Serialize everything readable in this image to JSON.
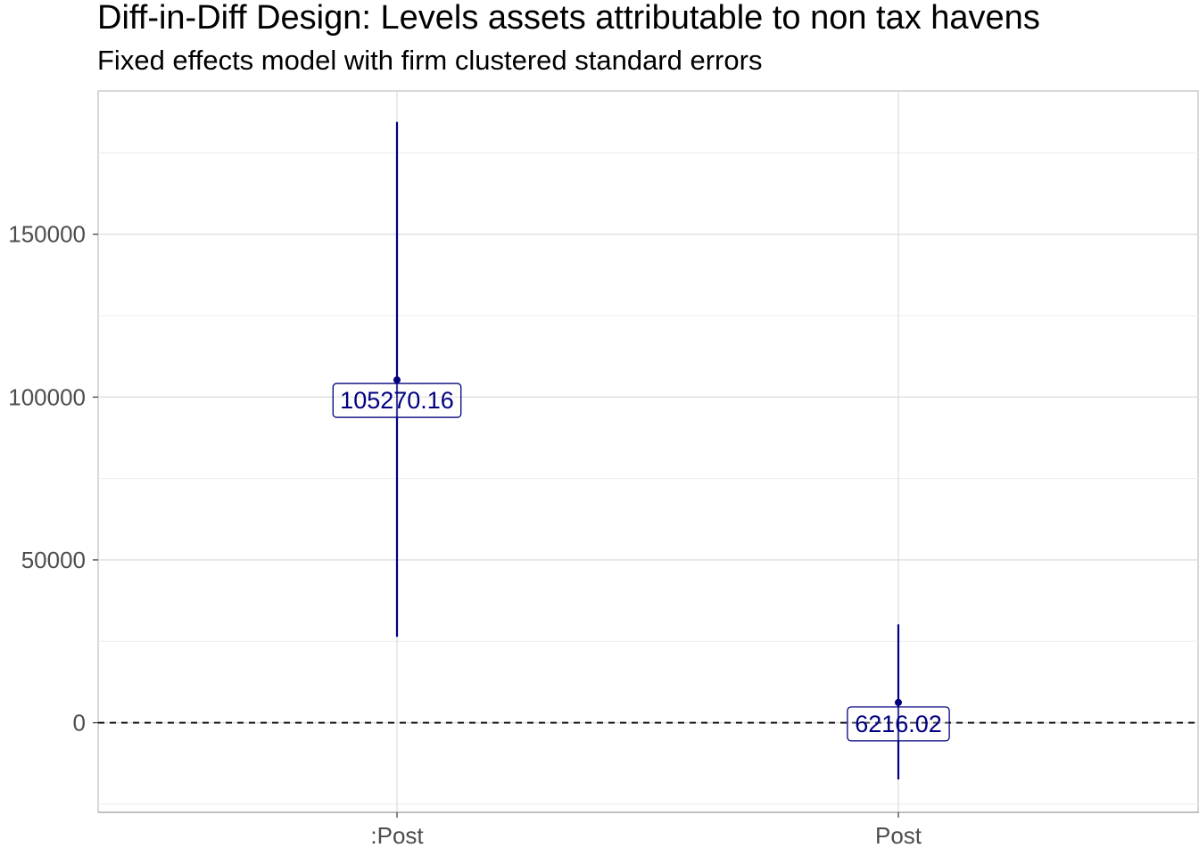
{
  "chart_data": {
    "type": "errorbar",
    "title": "Diff-in-Diff Design: Levels assets attributable to non tax havens",
    "subtitle": "Fixed effects model with firm clustered standard errors",
    "xlabel": "",
    "ylabel": "",
    "categories": [
      ":Post",
      "Post"
    ],
    "estimates": [
      105270.16,
      6216.02
    ],
    "labels": [
      "105270.16",
      "6216.02"
    ],
    "ci_lower": [
      26400,
      -17400
    ],
    "ci_upper": [
      184500,
      30200
    ],
    "ylim": [
      -27500,
      194000
    ],
    "yticks": [
      0,
      50000,
      100000,
      150000
    ],
    "ytick_labels": [
      "0",
      "50000",
      "100000",
      "150000"
    ],
    "reference_line": 0,
    "grid": true,
    "series_color": "#00007f",
    "reference_line_color": "#000000"
  }
}
